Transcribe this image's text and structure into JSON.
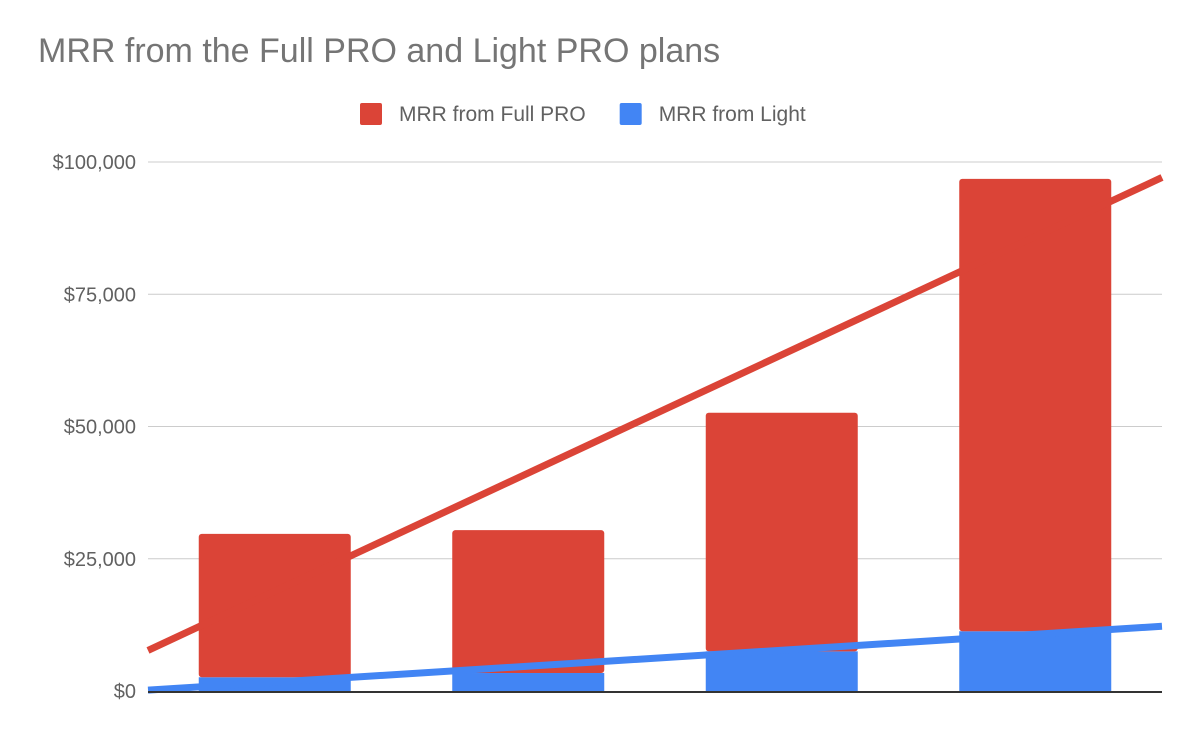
{
  "chart_data": {
    "type": "bar",
    "stacked": true,
    "title": "MRR from the Full PRO and Light PRO plans",
    "xlabel": "",
    "ylabel": "",
    "ylim": [
      0,
      100000
    ],
    "yticks": [
      "$0",
      "$25,000",
      "$50,000",
      "$75,000",
      "$100,000"
    ],
    "ytick_values": [
      0,
      25000,
      50000,
      75000,
      100000
    ],
    "categories": [
      "",
      "",
      "",
      ""
    ],
    "series": [
      {
        "name": "MRR from Light",
        "color": "#4285F4",
        "values": [
          2600,
          3400,
          7500,
          11300
        ]
      },
      {
        "name": "MRR from Full PRO",
        "color": "#DB4437",
        "values": [
          27100,
          27000,
          45100,
          85500
        ]
      }
    ],
    "legend_order": [
      "MRR from Full PRO",
      "MRR from Light"
    ],
    "legend_position": "top",
    "trendlines": "linear, per series",
    "grid": true
  }
}
